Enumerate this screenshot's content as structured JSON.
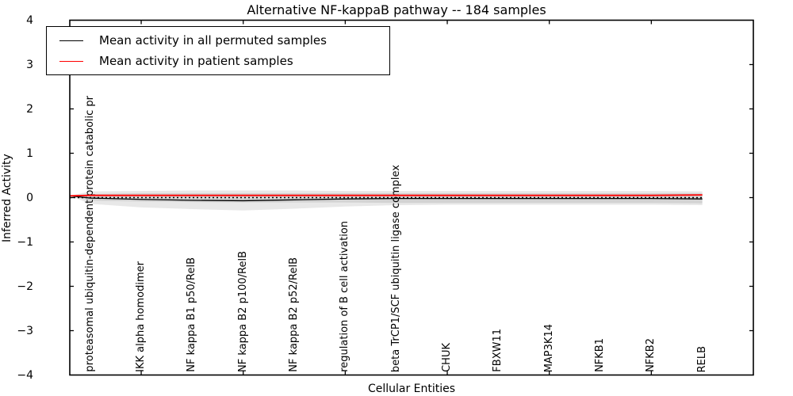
{
  "figure": {
    "title": "Alternative NF-kappaB pathway -- 184 samples",
    "xlabel": "Cellular Entities",
    "ylabel": "Inferred Activity"
  },
  "chart_data": {
    "type": "line",
    "title": "Alternative NF-kappaB pathway -- 184 samples",
    "xlabel": "Cellular Entities",
    "ylabel": "Inferred Activity",
    "ylim": [
      -4,
      4
    ],
    "yticks": [
      -4,
      -3,
      -2,
      -1,
      0,
      1,
      2,
      3,
      4
    ],
    "ytick_labels": [
      "−4",
      "−3",
      "−2",
      "−1",
      "0",
      "1",
      "2",
      "3",
      "4"
    ],
    "xlim": [
      0.6,
      14
    ],
    "xtick_marks": [
      2,
      4,
      6,
      8,
      10,
      12
    ],
    "grid": "off",
    "legend_position": "upper left",
    "categories": [
      {
        "x": 1,
        "label": "proteasomal ubiquitin-dependent protein catabolic pr"
      },
      {
        "x": 2,
        "label": "IKK alpha homodimer"
      },
      {
        "x": 3,
        "label": "NF kappa B1 p50/RelB"
      },
      {
        "x": 4,
        "label": "NF kappa B2 p100/RelB"
      },
      {
        "x": 5,
        "label": "NF kappa B2 p52/RelB"
      },
      {
        "x": 6,
        "label": "regulation of B cell activation"
      },
      {
        "x": 7,
        "label": "beta TrCP1/SCF ubiquitin ligase complex"
      },
      {
        "x": 8,
        "label": "CHUK"
      },
      {
        "x": 9,
        "label": "FBXW11"
      },
      {
        "x": 10,
        "label": "MAP3K14"
      },
      {
        "x": 11,
        "label": "NFKB1"
      },
      {
        "x": 12,
        "label": "NFKB2"
      },
      {
        "x": 13,
        "label": "RELB"
      }
    ],
    "zero_line": {
      "style": "dotted",
      "color": "#000000",
      "y": 0,
      "x_start": 0.6,
      "x_end": 13
    },
    "series": [
      {
        "name": "Mean activity in all permuted samples",
        "color": "#000000",
        "x": [
          0.6,
          1,
          2,
          3,
          4,
          5,
          6,
          7,
          8,
          9,
          10,
          11,
          12,
          13
        ],
        "y": [
          0.04,
          -0.01,
          -0.04,
          -0.06,
          -0.07,
          -0.05,
          -0.03,
          -0.02,
          -0.02,
          -0.02,
          -0.02,
          -0.02,
          -0.02,
          -0.03
        ]
      },
      {
        "name": "Mean activity in patient samples",
        "color": "#ff0000",
        "x": [
          0.6,
          1,
          2,
          3,
          4,
          5,
          6,
          7,
          8,
          9,
          10,
          11,
          12,
          13
        ],
        "y": [
          0.04,
          0.05,
          0.05,
          0.05,
          0.05,
          0.05,
          0.05,
          0.05,
          0.05,
          0.05,
          0.05,
          0.05,
          0.05,
          0.06
        ]
      }
    ],
    "bands": [
      {
        "name": "permuted-std-band",
        "color": "rgba(0,0,0,0.09)",
        "x": [
          0.6,
          1,
          2,
          3,
          4,
          5,
          6,
          7,
          8,
          9,
          10,
          11,
          12,
          13
        ],
        "upper": [
          0.04,
          0.08,
          0.1,
          0.1,
          0.1,
          0.1,
          0.1,
          0.1,
          0.1,
          0.1,
          0.1,
          0.1,
          0.1,
          0.1
        ],
        "lower": [
          0.04,
          -0.14,
          -0.22,
          -0.26,
          -0.29,
          -0.25,
          -0.2,
          -0.17,
          -0.16,
          -0.16,
          -0.16,
          -0.16,
          -0.16,
          -0.17
        ]
      },
      {
        "name": "patient-std-band",
        "color": "rgba(0,0,0,0.09)",
        "x": [
          0.6,
          1,
          2,
          3,
          4,
          5,
          6,
          7,
          8,
          9,
          10,
          11,
          12,
          13
        ],
        "upper": [
          0.04,
          0.14,
          0.15,
          0.16,
          0.16,
          0.16,
          0.15,
          0.15,
          0.15,
          0.15,
          0.15,
          0.15,
          0.15,
          0.14
        ],
        "lower": [
          0.04,
          -0.07,
          -0.09,
          -0.1,
          -0.11,
          -0.11,
          -0.11,
          -0.12,
          -0.12,
          -0.12,
          -0.12,
          -0.12,
          -0.12,
          -0.13
        ]
      }
    ]
  }
}
